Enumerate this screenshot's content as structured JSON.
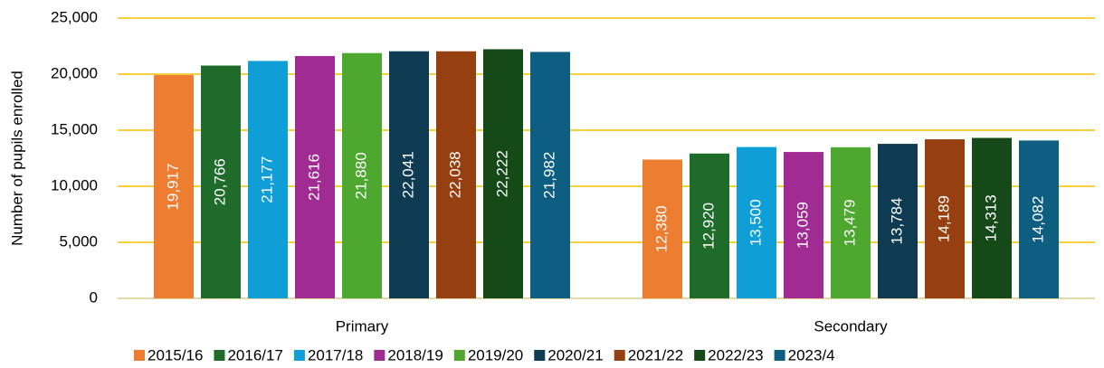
{
  "chart_data": {
    "type": "bar",
    "ylabel": "Number of pupils enrolled",
    "categories": [
      "Primary",
      "Secondary"
    ],
    "series": [
      {
        "name": "2015/16",
        "color": "#ED7D31",
        "values": [
          19917,
          12380
        ],
        "value_labels": [
          "19,917",
          "12,380"
        ]
      },
      {
        "name": "2016/17",
        "color": "#1E6B2A",
        "values": [
          20766,
          12920
        ],
        "value_labels": [
          "20,766",
          "12,920"
        ]
      },
      {
        "name": "2017/18",
        "color": "#0F9ED5",
        "values": [
          21177,
          13500
        ],
        "value_labels": [
          "21,177",
          "13,500"
        ]
      },
      {
        "name": "2018/19",
        "color": "#A02B93",
        "values": [
          21616,
          13059
        ],
        "value_labels": [
          "21,616",
          "13,059"
        ]
      },
      {
        "name": "2019/20",
        "color": "#4EA72E",
        "values": [
          21880,
          13479
        ],
        "value_labels": [
          "21,880",
          "13,479"
        ]
      },
      {
        "name": "2020/21",
        "color": "#0E3A52",
        "values": [
          22041,
          13784
        ],
        "value_labels": [
          "22,041",
          "13,784"
        ]
      },
      {
        "name": "2021/22",
        "color": "#964012",
        "values": [
          22038,
          14189
        ],
        "value_labels": [
          "22,038",
          "14,189"
        ]
      },
      {
        "name": "2022/23",
        "color": "#154A18",
        "values": [
          22222,
          14313
        ],
        "value_labels": [
          "22,222",
          "14,313"
        ]
      },
      {
        "name": "2023/4",
        "color": "#0D5E80",
        "values": [
          21982,
          14082
        ],
        "value_labels": [
          "21,982",
          "14,082"
        ]
      }
    ],
    "ylim": [
      0,
      25000
    ],
    "yticks": [
      0,
      {
        "value": 5000,
        "label": "5,000"
      },
      {
        "value": 10000,
        "label": "10,000"
      },
      {
        "value": 15000,
        "label": "15,000"
      },
      {
        "value": 20000,
        "label": "20,000"
      },
      {
        "value": 25000,
        "label": "25,000"
      }
    ],
    "grid": true,
    "grid_color": "#F2C200",
    "legend": "bottom"
  }
}
